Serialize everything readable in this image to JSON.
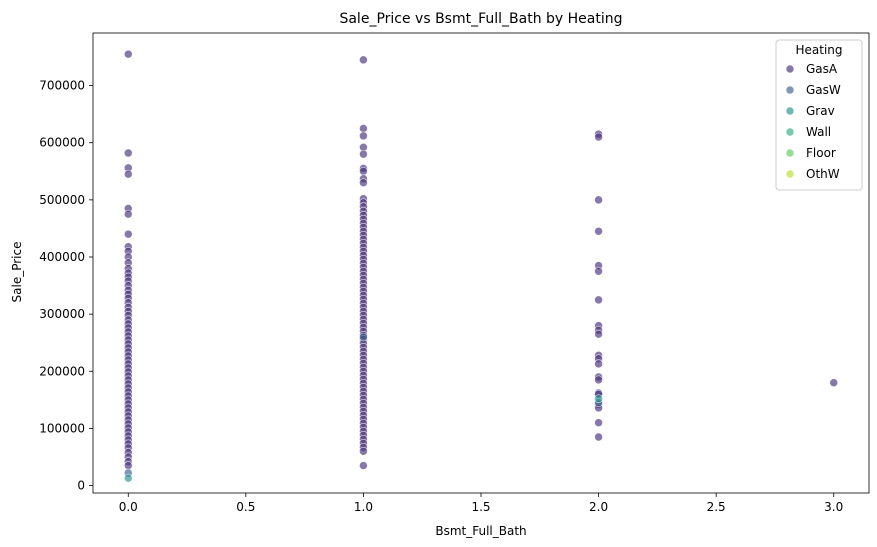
{
  "chart_data": {
    "type": "scatter",
    "title": "Sale_Price vs Bsmt_Full_Bath by Heating",
    "xlabel": "Bsmt_Full_Bath",
    "ylabel": "Sale_Price",
    "xlim": [
      -0.15,
      3.15
    ],
    "ylim": [
      -13000,
      792000
    ],
    "xticks": [
      0.0,
      0.5,
      1.0,
      1.5,
      2.0,
      2.5,
      3.0
    ],
    "xtick_labels": [
      "0.0",
      "0.5",
      "1.0",
      "1.5",
      "2.0",
      "2.5",
      "3.0"
    ],
    "yticks": [
      0,
      100000,
      200000,
      300000,
      400000,
      500000,
      600000,
      700000
    ],
    "ytick_labels": [
      "0",
      "100000",
      "200000",
      "300000",
      "400000",
      "500000",
      "600000",
      "700000"
    ],
    "grid": false,
    "legend": {
      "title": "Heating",
      "placement": "top-right"
    },
    "series": [
      {
        "name": "GasA",
        "color": "#472f7d",
        "points": [
          [
            0,
            755000
          ],
          [
            0,
            582000
          ],
          [
            0,
            556000
          ],
          [
            0,
            545000
          ],
          [
            0,
            485000
          ],
          [
            0,
            475000
          ],
          [
            0,
            440000
          ],
          [
            0,
            418000
          ],
          [
            0,
            410000
          ],
          [
            0,
            400000
          ],
          [
            0,
            390000
          ],
          [
            0,
            380000
          ],
          [
            0,
            372000
          ],
          [
            0,
            365000
          ],
          [
            0,
            358000
          ],
          [
            0,
            350000
          ],
          [
            0,
            342000
          ],
          [
            0,
            335000
          ],
          [
            0,
            328000
          ],
          [
            0,
            320000
          ],
          [
            0,
            312000
          ],
          [
            0,
            305000
          ],
          [
            0,
            298000
          ],
          [
            0,
            290000
          ],
          [
            0,
            283000
          ],
          [
            0,
            276000
          ],
          [
            0,
            269000
          ],
          [
            0,
            262000
          ],
          [
            0,
            255000
          ],
          [
            0,
            248000
          ],
          [
            0,
            241000
          ],
          [
            0,
            234000
          ],
          [
            0,
            227000
          ],
          [
            0,
            220000
          ],
          [
            0,
            213000
          ],
          [
            0,
            206000
          ],
          [
            0,
            199000
          ],
          [
            0,
            192000
          ],
          [
            0,
            185000
          ],
          [
            0,
            178000
          ],
          [
            0,
            171000
          ],
          [
            0,
            164000
          ],
          [
            0,
            157000
          ],
          [
            0,
            150000
          ],
          [
            0,
            143000
          ],
          [
            0,
            136000
          ],
          [
            0,
            129000
          ],
          [
            0,
            122000
          ],
          [
            0,
            115000
          ],
          [
            0,
            108000
          ],
          [
            0,
            101000
          ],
          [
            0,
            94000
          ],
          [
            0,
            87000
          ],
          [
            0,
            80000
          ],
          [
            0,
            73000
          ],
          [
            0,
            66000
          ],
          [
            0,
            58000
          ],
          [
            0,
            50000
          ],
          [
            0,
            42000
          ],
          [
            0,
            35000
          ],
          [
            1,
            745000
          ],
          [
            1,
            625000
          ],
          [
            1,
            612000
          ],
          [
            1,
            592000
          ],
          [
            1,
            580000
          ],
          [
            1,
            555000
          ],
          [
            1,
            550000
          ],
          [
            1,
            537000
          ],
          [
            1,
            530000
          ],
          [
            1,
            502000
          ],
          [
            1,
            495000
          ],
          [
            1,
            488000
          ],
          [
            1,
            480000
          ],
          [
            1,
            473000
          ],
          [
            1,
            466000
          ],
          [
            1,
            459000
          ],
          [
            1,
            452000
          ],
          [
            1,
            445000
          ],
          [
            1,
            438000
          ],
          [
            1,
            431000
          ],
          [
            1,
            424000
          ],
          [
            1,
            417000
          ],
          [
            1,
            410000
          ],
          [
            1,
            403000
          ],
          [
            1,
            396000
          ],
          [
            1,
            389000
          ],
          [
            1,
            382000
          ],
          [
            1,
            375000
          ],
          [
            1,
            368000
          ],
          [
            1,
            361000
          ],
          [
            1,
            354000
          ],
          [
            1,
            347000
          ],
          [
            1,
            340000
          ],
          [
            1,
            333000
          ],
          [
            1,
            326000
          ],
          [
            1,
            319000
          ],
          [
            1,
            312000
          ],
          [
            1,
            305000
          ],
          [
            1,
            298000
          ],
          [
            1,
            291000
          ],
          [
            1,
            284000
          ],
          [
            1,
            277000
          ],
          [
            1,
            270000
          ],
          [
            1,
            263000
          ],
          [
            1,
            256000
          ],
          [
            1,
            249000
          ],
          [
            1,
            242000
          ],
          [
            1,
            235000
          ],
          [
            1,
            228000
          ],
          [
            1,
            221000
          ],
          [
            1,
            214000
          ],
          [
            1,
            207000
          ],
          [
            1,
            200000
          ],
          [
            1,
            193000
          ],
          [
            1,
            186000
          ],
          [
            1,
            179000
          ],
          [
            1,
            172000
          ],
          [
            1,
            165000
          ],
          [
            1,
            158000
          ],
          [
            1,
            151000
          ],
          [
            1,
            144000
          ],
          [
            1,
            137000
          ],
          [
            1,
            130000
          ],
          [
            1,
            123000
          ],
          [
            1,
            116000
          ],
          [
            1,
            109000
          ],
          [
            1,
            102000
          ],
          [
            1,
            95000
          ],
          [
            1,
            88000
          ],
          [
            1,
            81000
          ],
          [
            1,
            74000
          ],
          [
            1,
            67000
          ],
          [
            1,
            60000
          ],
          [
            1,
            35000
          ],
          [
            2,
            615000
          ],
          [
            2,
            610000
          ],
          [
            2,
            500000
          ],
          [
            2,
            445000
          ],
          [
            2,
            385000
          ],
          [
            2,
            375000
          ],
          [
            2,
            325000
          ],
          [
            2,
            280000
          ],
          [
            2,
            272000
          ],
          [
            2,
            265000
          ],
          [
            2,
            228000
          ],
          [
            2,
            222000
          ],
          [
            2,
            213000
          ],
          [
            2,
            190000
          ],
          [
            2,
            185000
          ],
          [
            2,
            162000
          ],
          [
            2,
            160000
          ],
          [
            2,
            142000
          ],
          [
            2,
            136000
          ],
          [
            2,
            110000
          ],
          [
            2,
            85000
          ],
          [
            3,
            180000
          ]
        ]
      },
      {
        "name": "GasW",
        "color": "#3b5d8c",
        "points": [
          [
            0,
            22000
          ],
          [
            1,
            260000
          ],
          [
            2,
            145000
          ]
        ]
      },
      {
        "name": "Grav",
        "color": "#21918c",
        "points": [
          [
            0,
            13000
          ],
          [
            2,
            152000
          ]
        ]
      },
      {
        "name": "Wall",
        "color": "#29af7f",
        "points": []
      },
      {
        "name": "Floor",
        "color": "#5ec962",
        "points": []
      },
      {
        "name": "OthW",
        "color": "#b5de2b",
        "points": []
      }
    ]
  }
}
